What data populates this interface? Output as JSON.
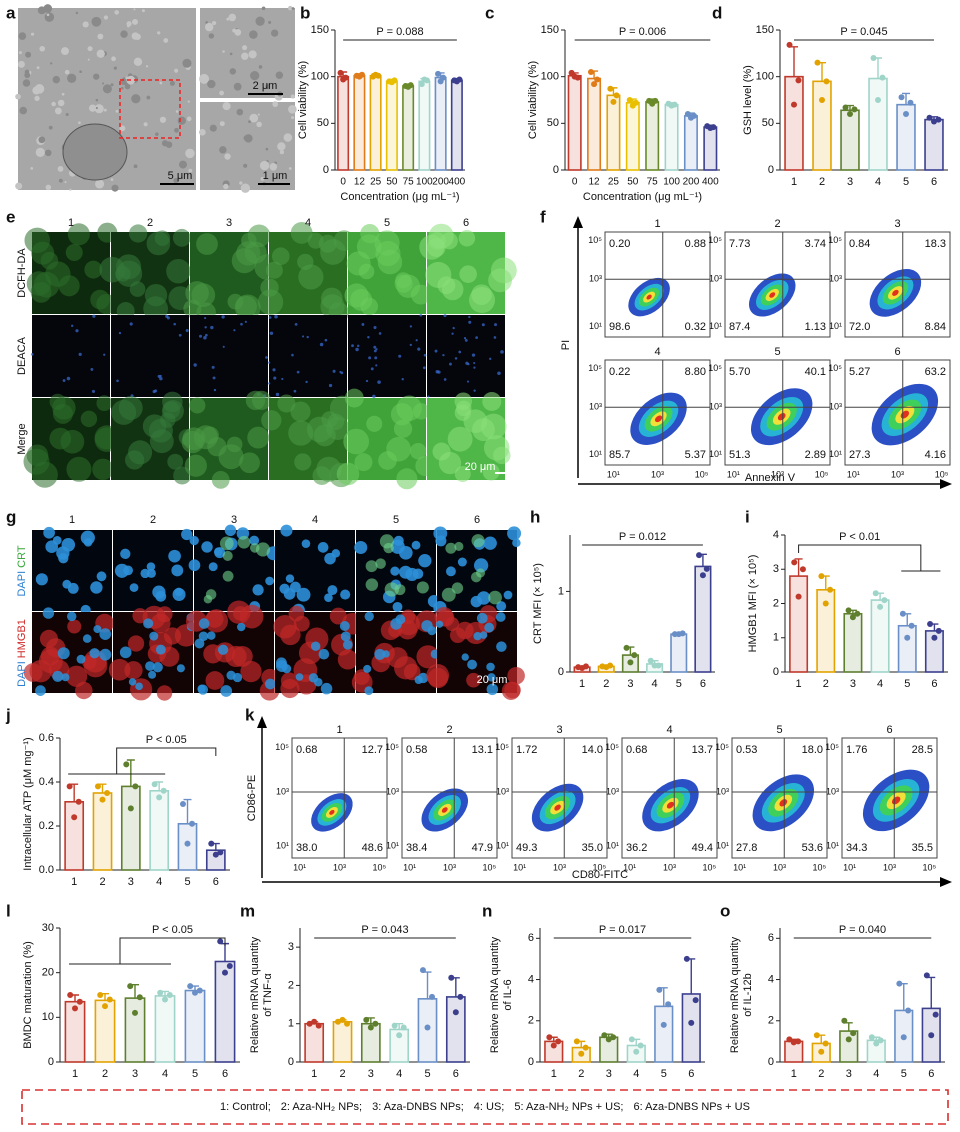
{
  "panel_labels": [
    "a",
    "b",
    "c",
    "d",
    "e",
    "f",
    "g",
    "h",
    "i",
    "j",
    "k",
    "l",
    "m",
    "n",
    "o"
  ],
  "panel_a": {
    "scale_bars": [
      "5 μm",
      "2 μm",
      "1 μm"
    ]
  },
  "panel_e": {
    "columns": [
      "1",
      "2",
      "3",
      "4",
      "5",
      "6"
    ],
    "rows": [
      "DCFH-DA",
      "DEACA",
      "Merge"
    ],
    "scale_bar": "20 μm"
  },
  "panel_f": {
    "columns": [
      "1",
      "2",
      "3",
      "4",
      "5",
      "6"
    ],
    "plots": [
      [
        "0.20",
        "0.88",
        "98.6",
        "0.32"
      ],
      [
        "7.73",
        "3.74",
        "87.4",
        "1.13"
      ],
      [
        "0.84",
        "18.3",
        "72.0",
        "8.84"
      ],
      [
        "0.22",
        "8.80",
        "85.7",
        "5.37"
      ],
      [
        "5.70",
        "40.1",
        "51.3",
        "2.89"
      ],
      [
        "5.27",
        "63.2",
        "27.3",
        "4.16"
      ]
    ],
    "yticks": [
      "10⁵",
      "10³",
      "10¹"
    ],
    "xticks": [
      "10¹",
      "10³",
      "10⁵"
    ],
    "ylabel": "PI",
    "xlabel": "Annexin V"
  },
  "panel_g": {
    "columns": [
      "1",
      "2",
      "3",
      "4",
      "5",
      "6"
    ],
    "rows": [
      [
        "DAPI",
        "CRT"
      ],
      [
        "DAPI",
        "HMGB1"
      ]
    ],
    "scale_bar": "20 μm"
  },
  "panel_k": {
    "columns": [
      "1",
      "2",
      "3",
      "4",
      "5",
      "6"
    ],
    "plots": [
      [
        "0.68",
        "12.7",
        "38.0",
        "48.6"
      ],
      [
        "0.58",
        "13.1",
        "38.4",
        "47.9"
      ],
      [
        "1.72",
        "14.0",
        "49.3",
        "35.0"
      ],
      [
        "0.68",
        "13.7",
        "36.2",
        "49.4"
      ],
      [
        "0.53",
        "18.0",
        "27.8",
        "53.6"
      ],
      [
        "1.76",
        "28.5",
        "34.3",
        "35.5"
      ]
    ],
    "yticks": [
      "10⁵",
      "10³",
      "10¹"
    ],
    "xticks": [
      "10¹",
      "10³",
      "10⁵"
    ],
    "ylabel": "CD86-PE",
    "xlabel": "CD80-FITC"
  },
  "chart_data": [
    {
      "type": "bar",
      "ylabel": "Cell viability (%)",
      "xlabel": "Concentration (μg mL⁻¹)",
      "annotation": "P = 0.088",
      "categories": [
        "0",
        "12",
        "25",
        "50",
        "75",
        "100",
        "200",
        "400"
      ],
      "colors": [
        "#c0392b",
        "#e07b1a",
        "#e2a300",
        "#e8c000",
        "#6a8a2a",
        "#9fd4c9",
        "#6a8fc7",
        "#3b3f8e"
      ],
      "values": [
        100,
        101,
        101,
        95,
        90,
        95,
        99,
        96
      ],
      "errors": [
        5,
        2,
        2,
        2,
        2,
        3,
        5,
        2
      ],
      "points": [
        [
          104,
          97,
          99
        ],
        [
          101,
          100,
          102
        ],
        [
          100,
          102,
          101
        ],
        [
          95,
          94,
          96
        ],
        [
          90,
          89,
          91
        ],
        [
          92,
          97,
          96
        ],
        [
          103,
          95,
          99
        ],
        [
          96,
          95,
          97
        ]
      ],
      "ylim": [
        0,
        150
      ],
      "yticks": [
        0,
        50,
        100,
        150
      ]
    },
    {
      "type": "bar",
      "ylabel": "Cell viability (%)",
      "xlabel": "Concentration (μg mL⁻¹)",
      "annotation": "P = 0.006",
      "categories": [
        "0",
        "12",
        "25",
        "50",
        "75",
        "100",
        "200",
        "400"
      ],
      "colors": [
        "#c0392b",
        "#e07b1a",
        "#e2a300",
        "#e8c000",
        "#6a8a2a",
        "#9fd4c9",
        "#6a8fc7",
        "#3b3f8e"
      ],
      "values": [
        101,
        98,
        80,
        72,
        73,
        70,
        58,
        46
      ],
      "errors": [
        3,
        8,
        8,
        4,
        3,
        2,
        3,
        2
      ],
      "points": [
        [
          104,
          100,
          99
        ],
        [
          105,
          92,
          97
        ],
        [
          87,
          73,
          80
        ],
        [
          75,
          69,
          72
        ],
        [
          74,
          71,
          74
        ],
        [
          71,
          69,
          70
        ],
        [
          60,
          56,
          58
        ],
        [
          47,
          45,
          46
        ]
      ],
      "ylim": [
        0,
        150
      ],
      "yticks": [
        0,
        50,
        100,
        150
      ]
    },
    {
      "type": "bar",
      "ylabel": "GSH level (%)",
      "annotation": "P = 0.045",
      "categories": [
        "1",
        "2",
        "3",
        "4",
        "5",
        "6"
      ],
      "colors": [
        "#c0392b",
        "#e2a300",
        "#5e7f2e",
        "#9fd4c9",
        "#6a8fc7",
        "#3b3f8e"
      ],
      "values": [
        100,
        95,
        64,
        98,
        70,
        54
      ],
      "errors": [
        32,
        20,
        5,
        22,
        12,
        3
      ],
      "points": [
        [
          134,
          70,
          96
        ],
        [
          115,
          75,
          95
        ],
        [
          67,
          60,
          65
        ],
        [
          120,
          75,
          99
        ],
        [
          78,
          60,
          72
        ],
        [
          56,
          52,
          54
        ]
      ],
      "ylim": [
        0,
        150
      ],
      "yticks": [
        0,
        50,
        100,
        150
      ]
    },
    {
      "type": "bar",
      "ylabel": "CRT MFI (× 10⁵)",
      "annotation": "P = 0.012",
      "categories": [
        "1",
        "2",
        "3",
        "4",
        "5",
        "6"
      ],
      "colors": [
        "#c0392b",
        "#e2a300",
        "#5e7f2e",
        "#9fd4c9",
        "#6a8fc7",
        "#3b3f8e"
      ],
      "values": [
        0.06,
        0.07,
        0.21,
        0.1,
        0.47,
        1.31
      ],
      "errors": [
        0.01,
        0.01,
        0.1,
        0.04,
        0.01,
        0.15
      ],
      "points": [
        [
          0.06,
          0.05,
          0.07
        ],
        [
          0.07,
          0.06,
          0.08
        ],
        [
          0.3,
          0.12,
          0.21
        ],
        [
          0.14,
          0.08,
          0.08
        ],
        [
          0.47,
          0.47,
          0.48
        ],
        [
          1.45,
          1.2,
          1.28
        ]
      ],
      "ylim": [
        0,
        1.7
      ],
      "yticks": [
        0,
        1
      ]
    },
    {
      "type": "bar",
      "ylabel": "HMGB1 MFI (× 10⁵)",
      "annotation": "P < 0.01",
      "categories": [
        "1",
        "2",
        "3",
        "4",
        "5",
        "6"
      ],
      "colors": [
        "#c0392b",
        "#e2a300",
        "#5e7f2e",
        "#9fd4c9",
        "#6a8fc7",
        "#3b3f8e"
      ],
      "values": [
        2.8,
        2.4,
        1.7,
        2.1,
        1.35,
        1.2
      ],
      "errors": [
        0.5,
        0.4,
        0.1,
        0.2,
        0.35,
        0.2
      ],
      "points": [
        [
          3.2,
          2.2,
          3.0
        ],
        [
          2.8,
          2.0,
          2.4
        ],
        [
          1.8,
          1.6,
          1.7
        ],
        [
          2.3,
          1.9,
          2.1
        ],
        [
          1.7,
          1.0,
          1.35
        ],
        [
          1.4,
          1.0,
          1.2
        ]
      ],
      "ylim": [
        0,
        4
      ],
      "yticks": [
        0,
        1,
        2,
        3,
        4
      ]
    },
    {
      "type": "bar",
      "ylabel": "Intracellular ATP (μM mg⁻¹)",
      "annotation": "P < 0.05",
      "categories": [
        "1",
        "2",
        "3",
        "4",
        "5",
        "6"
      ],
      "colors": [
        "#c0392b",
        "#e2a300",
        "#5e7f2e",
        "#9fd4c9",
        "#6a8fc7",
        "#3b3f8e"
      ],
      "values": [
        0.31,
        0.35,
        0.38,
        0.36,
        0.21,
        0.09
      ],
      "errors": [
        0.08,
        0.04,
        0.12,
        0.04,
        0.11,
        0.03
      ],
      "points": [
        [
          0.38,
          0.24,
          0.31
        ],
        [
          0.38,
          0.32,
          0.35
        ],
        [
          0.48,
          0.28,
          0.38
        ],
        [
          0.39,
          0.33,
          0.36
        ],
        [
          0.3,
          0.12,
          0.21
        ],
        [
          0.12,
          0.07,
          0.08
        ]
      ],
      "ylim": [
        0,
        0.6
      ],
      "yticks": [
        {
          "value": 0,
          "label": "0.0"
        },
        0.2,
        0.4,
        0.6
      ]
    },
    {
      "type": "bar",
      "ylabel": "BMDC maturation (%)",
      "annotation": "P < 0.05",
      "categories": [
        "1",
        "2",
        "3",
        "4",
        "5",
        "6"
      ],
      "colors": [
        "#c0392b",
        "#e2a300",
        "#5e7f2e",
        "#9fd4c9",
        "#6a8fc7",
        "#3b3f8e"
      ],
      "values": [
        13.5,
        13.8,
        14.3,
        14.8,
        16,
        22.5
      ],
      "errors": [
        1.5,
        1.5,
        3,
        1,
        1,
        4
      ],
      "points": [
        [
          15,
          12,
          13.5
        ],
        [
          15,
          12.5,
          14
        ],
        [
          17,
          11,
          14.5
        ],
        [
          15.5,
          14,
          15
        ],
        [
          17,
          15.5,
          16
        ],
        [
          27,
          20,
          21.5
        ]
      ],
      "ylim": [
        0,
        30
      ],
      "yticks": [
        0,
        10,
        20,
        30
      ]
    },
    {
      "type": "bar",
      "ylabel": [
        "Relative mRNA quantity",
        "of TNF-α"
      ],
      "annotation": "P = 0.043",
      "categories": [
        "1",
        "2",
        "3",
        "4",
        "5",
        "6"
      ],
      "colors": [
        "#c0392b",
        "#e2a300",
        "#5e7f2e",
        "#9fd4c9",
        "#6a8fc7",
        "#3b3f8e"
      ],
      "values": [
        1.0,
        1.05,
        1.0,
        0.85,
        1.65,
        1.7
      ],
      "errors": [
        0.05,
        0.05,
        0.15,
        0.15,
        0.7,
        0.5
      ],
      "points": [
        [
          1.0,
          1.05,
          0.95
        ],
        [
          1.05,
          1.1,
          1.0
        ],
        [
          1.1,
          0.9,
          1.0
        ],
        [
          0.95,
          0.7,
          0.9
        ],
        [
          2.4,
          0.9,
          1.7
        ],
        [
          2.2,
          1.3,
          1.7
        ]
      ],
      "ylim": [
        0,
        3.5
      ],
      "yticks": [
        0,
        1,
        2,
        3
      ]
    },
    {
      "type": "bar",
      "ylabel": [
        "Relative mRNA quantity",
        "of IL-6"
      ],
      "annotation": "P = 0.017",
      "categories": [
        "1",
        "2",
        "3",
        "4",
        "5",
        "6"
      ],
      "colors": [
        "#c0392b",
        "#e2a300",
        "#5e7f2e",
        "#9fd4c9",
        "#6a8fc7",
        "#3b3f8e"
      ],
      "values": [
        1.0,
        0.7,
        1.2,
        0.8,
        2.7,
        3.3
      ],
      "errors": [
        0.2,
        0.3,
        0.15,
        0.3,
        0.9,
        1.7
      ],
      "points": [
        [
          1.2,
          0.8,
          1.0
        ],
        [
          1.0,
          0.4,
          0.7
        ],
        [
          1.3,
          1.1,
          1.2
        ],
        [
          1.1,
          0.5,
          0.8
        ],
        [
          3.5,
          1.8,
          2.8
        ],
        [
          5.0,
          1.9,
          3.0
        ]
      ],
      "ylim": [
        0,
        6.5
      ],
      "yticks": [
        0,
        2,
        4,
        6
      ]
    },
    {
      "type": "bar",
      "ylabel": [
        "Relative mRNA quantity",
        "of IL-12b"
      ],
      "annotation": "P = 0.040",
      "categories": [
        "1",
        "2",
        "3",
        "4",
        "5",
        "6"
      ],
      "colors": [
        "#c0392b",
        "#e2a300",
        "#5e7f2e",
        "#9fd4c9",
        "#6a8fc7",
        "#3b3f8e"
      ],
      "values": [
        1.0,
        0.9,
        1.5,
        1.05,
        2.5,
        2.6
      ],
      "errors": [
        0.1,
        0.4,
        0.4,
        0.15,
        1.3,
        1.5
      ],
      "points": [
        [
          1.1,
          0.95,
          1.0
        ],
        [
          1.3,
          0.5,
          0.9
        ],
        [
          2.0,
          1.1,
          1.4
        ],
        [
          1.2,
          0.9,
          1.05
        ],
        [
          3.8,
          1.2,
          2.5
        ],
        [
          4.2,
          1.3,
          2.3
        ]
      ],
      "ylim": [
        0,
        6.5
      ],
      "yticks": [
        0,
        2,
        4,
        6
      ]
    }
  ],
  "legend": [
    "1: Control;",
    "2: Aza-NH₂ NPs;",
    "3: Aza-DNBS NPs;",
    "4: US;",
    "5: Aza-NH₂ NPs + US;",
    "6: Aza-DNBS NPs + US"
  ]
}
